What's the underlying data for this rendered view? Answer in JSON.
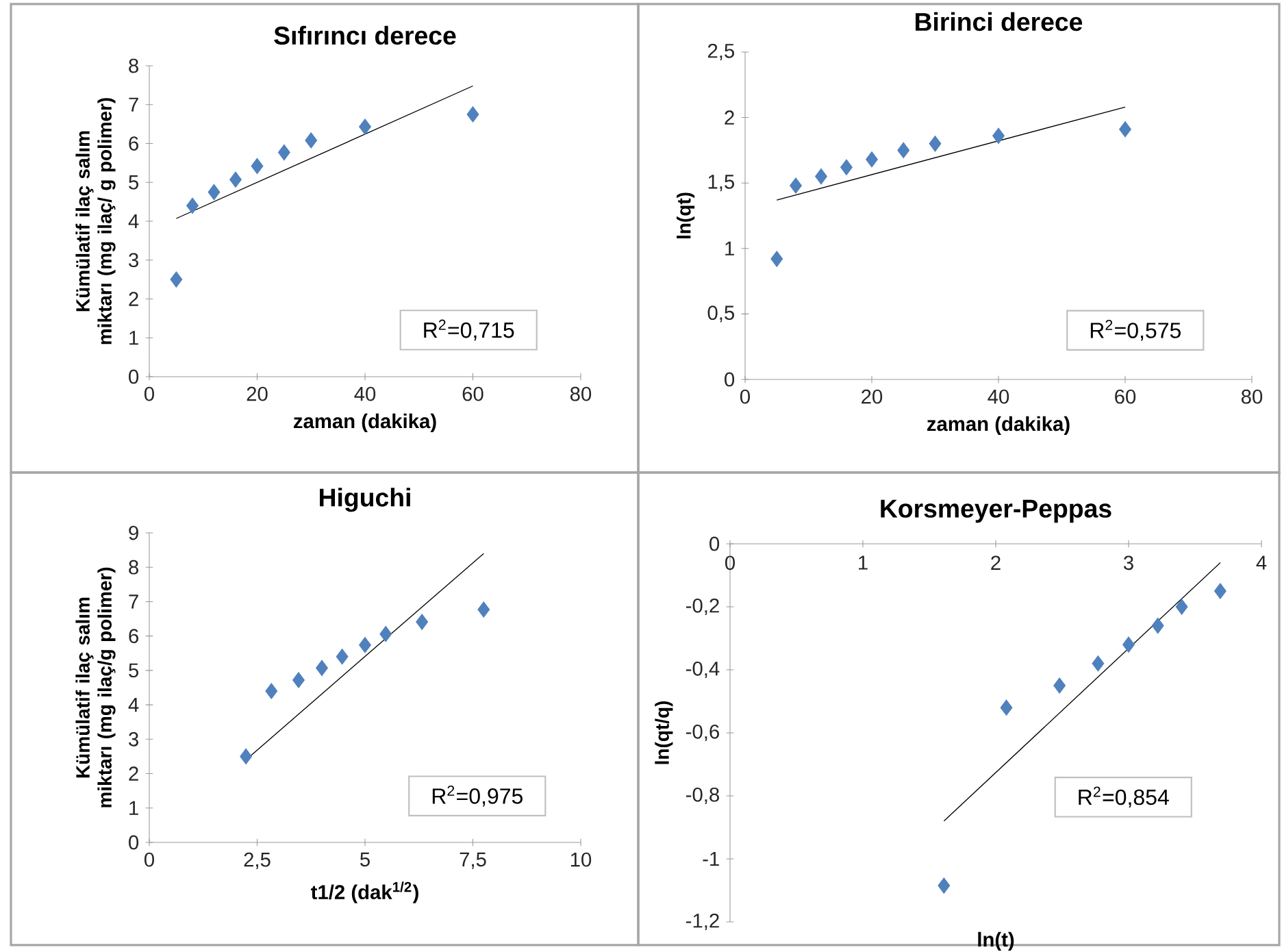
{
  "chart_data": [
    {
      "type": "scatter",
      "title": "Sıfırıncı derece",
      "xlabel": "zaman (dakika)",
      "ylabel": "Kümülatif ilaç salım miktarı (mg ilaç/ g polimer)",
      "marker": "diamond",
      "xlim": [
        0,
        80
      ],
      "xticks": [
        0,
        20,
        40,
        60,
        80
      ],
      "ylim": [
        0,
        8
      ],
      "yticks": [
        0,
        1,
        2,
        3,
        4,
        5,
        6,
        7,
        8
      ],
      "series": [
        {
          "color": "#4f81bd",
          "x": [
            5,
            8,
            12,
            16,
            20,
            25,
            30,
            40,
            60
          ],
          "values": [
            2.5,
            4.4,
            4.75,
            5.07,
            5.42,
            5.77,
            6.08,
            6.43,
            6.75
          ]
        },
        {
          "type": "line",
          "marker": "none",
          "color": "#000000",
          "x": [
            5,
            60
          ],
          "values": [
            4.07,
            7.48
          ]
        }
      ],
      "annotations": [
        "R$^{2}$=0,715"
      ]
    },
    {
      "type": "scatter",
      "title": "Birinci derece",
      "xlabel": "zaman (dakika)",
      "ylabel": "ln(qt)",
      "marker": "diamond",
      "xlim": [
        0,
        80
      ],
      "xticks": [
        0,
        20,
        40,
        60,
        80
      ],
      "ylim": [
        0,
        2.5
      ],
      "yticks": [
        0,
        {
          "value": 0.5,
          "label": "0,5"
        },
        1,
        {
          "value": 1.5,
          "label": "1,5"
        },
        2,
        {
          "value": 2.5,
          "label": "2,5"
        }
      ],
      "series": [
        {
          "color": "#4f81bd",
          "x": [
            5,
            8,
            12,
            16,
            20,
            25,
            30,
            40,
            60
          ],
          "values": [
            0.92,
            1.48,
            1.55,
            1.62,
            1.68,
            1.75,
            1.8,
            1.86,
            1.91
          ]
        },
        {
          "type": "line",
          "marker": "none",
          "color": "#000000",
          "x": [
            5,
            60
          ],
          "values": [
            1.37,
            2.08
          ]
        }
      ],
      "annotations": [
        "R$^{2}$=0,575"
      ]
    },
    {
      "type": "scatter",
      "title": "Higuchi",
      "xlabel": "t1/2 (dak$^{1/2}$)",
      "ylabel": "Kümülatif ilaç salım miktarı (mg ilaç/g polimer)",
      "marker": "diamond",
      "xlim": [
        0,
        10
      ],
      "xticks": [
        0,
        {
          "value": 2.5,
          "label": "2,5"
        },
        5,
        {
          "value": 7.5,
          "label": "7,5"
        },
        10
      ],
      "ylim": [
        0,
        9
      ],
      "yticks": [
        0,
        1,
        2,
        3,
        4,
        5,
        6,
        7,
        8,
        9
      ],
      "series": [
        {
          "color": "#4f81bd",
          "x": [
            2.24,
            2.83,
            3.46,
            4.0,
            4.47,
            5.0,
            5.48,
            6.32,
            7.75
          ],
          "values": [
            2.5,
            4.4,
            4.72,
            5.07,
            5.4,
            5.74,
            6.06,
            6.41,
            6.77
          ]
        },
        {
          "type": "line",
          "marker": "none",
          "color": "#000000",
          "x": [
            2.24,
            7.75
          ],
          "values": [
            2.4,
            8.4
          ]
        }
      ],
      "annotations": [
        "R$^{2}$=0,975"
      ]
    },
    {
      "type": "scatter",
      "title": "Korsmeyer-Peppas",
      "xlabel": "ln(t)",
      "ylabel": "ln(qt/q)",
      "marker": "diamond",
      "xlim": [
        0,
        4
      ],
      "xticks": [
        0,
        1,
        2,
        3,
        4
      ],
      "ylim": [
        -1.2,
        0
      ],
      "yticks": [
        {
          "value": -1.2,
          "label": "-1,2"
        },
        -1,
        {
          "value": -0.8,
          "label": "-0,8"
        },
        {
          "value": -0.6,
          "label": "-0,6"
        },
        {
          "value": -0.4,
          "label": "-0,4"
        },
        {
          "value": -0.2,
          "label": "-0,2"
        },
        0
      ],
      "series": [
        {
          "color": "#4f81bd",
          "x": [
            1.61,
            2.08,
            2.48,
            2.77,
            3.0,
            3.22,
            3.4,
            3.69
          ],
          "values": [
            -1.085,
            -0.52,
            -0.45,
            -0.38,
            -0.32,
            -0.26,
            -0.2,
            -0.15
          ]
        },
        {
          "type": "line",
          "marker": "none",
          "color": "#000000",
          "x": [
            1.61,
            3.69
          ],
          "values": [
            -0.88,
            -0.06
          ]
        }
      ],
      "annotations": [
        "R$^{2}$=0,854"
      ]
    }
  ]
}
